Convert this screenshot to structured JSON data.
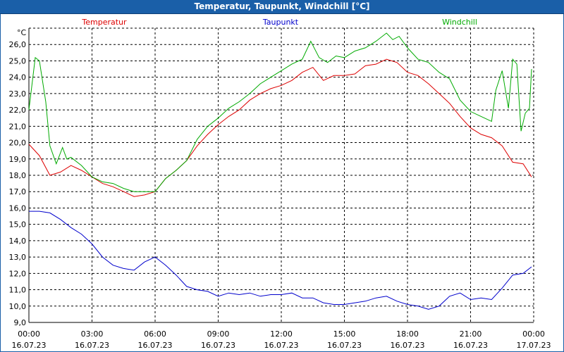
{
  "window": {
    "title": "Temperatur, Taupunkt, Windchill [°C]"
  },
  "chart_data": {
    "type": "line",
    "title": "Temperatur, Taupunkt, Windchill [°C]",
    "unit_label": "°C",
    "ylim": [
      9.0,
      27.0
    ],
    "y_ticks": [
      "9,0",
      "10,0",
      "11,0",
      "12,0",
      "13,0",
      "14,0",
      "15,0",
      "16,0",
      "17,0",
      "18,0",
      "19,0",
      "20,0",
      "21,0",
      "22,0",
      "23,0",
      "24,0",
      "25,0",
      "26,0"
    ],
    "x_ticks": [
      {
        "time": "00:00",
        "date": "16.07.23"
      },
      {
        "time": "03:00",
        "date": "16.07.23"
      },
      {
        "time": "06:00",
        "date": "16.07.23"
      },
      {
        "time": "09:00",
        "date": "16.07.23"
      },
      {
        "time": "12:00",
        "date": "16.07.23"
      },
      {
        "time": "15:00",
        "date": "16.07.23"
      },
      {
        "time": "18:00",
        "date": "16.07.23"
      },
      {
        "time": "21:00",
        "date": "16.07.23"
      },
      {
        "time": "00:00",
        "date": "17.07.23"
      }
    ],
    "x_range_hours": [
      0,
      24
    ],
    "series": [
      {
        "name": "Temperatur",
        "color": "#dd0000",
        "x": [
          0,
          0.5,
          1,
          1.5,
          2,
          2.5,
          3,
          3.5,
          4,
          4.5,
          5,
          5.5,
          6,
          6.5,
          7,
          7.5,
          8,
          8.5,
          9,
          9.5,
          10,
          10.5,
          11,
          11.5,
          12,
          12.5,
          13,
          13.5,
          14,
          14.5,
          15,
          15.5,
          16,
          16.5,
          17,
          17.5,
          18,
          18.5,
          19,
          19.5,
          20,
          20.5,
          21,
          21.5,
          22,
          22.5,
          23,
          23.5,
          23.9
        ],
        "values": [
          19.9,
          19.2,
          18.0,
          18.2,
          18.6,
          18.3,
          17.9,
          17.5,
          17.3,
          17.0,
          16.7,
          16.8,
          17.0,
          17.8,
          18.3,
          18.9,
          19.8,
          20.5,
          21.1,
          21.6,
          22.0,
          22.6,
          23.0,
          23.3,
          23.5,
          23.8,
          24.3,
          24.6,
          23.8,
          24.1,
          24.1,
          24.2,
          24.7,
          24.8,
          25.1,
          24.9,
          24.3,
          24.1,
          23.6,
          23.0,
          22.4,
          21.6,
          20.9,
          20.5,
          20.3,
          19.8,
          18.8,
          18.7,
          17.9
        ]
      },
      {
        "name": "Taupunkt",
        "color": "#0000cc",
        "x": [
          0,
          0.5,
          1,
          1.5,
          2,
          2.5,
          3,
          3.5,
          4,
          4.5,
          5,
          5.5,
          6,
          6.5,
          7,
          7.5,
          8,
          8.5,
          9,
          9.5,
          10,
          10.5,
          11,
          11.5,
          12,
          12.5,
          13,
          13.5,
          14,
          14.5,
          15,
          15.5,
          16,
          16.5,
          17,
          17.5,
          18,
          18.5,
          19,
          19.5,
          20,
          20.5,
          21,
          21.5,
          22,
          22.5,
          23,
          23.5,
          23.9
        ],
        "values": [
          15.8,
          15.8,
          15.7,
          15.3,
          14.8,
          14.4,
          13.8,
          13.0,
          12.5,
          12.3,
          12.2,
          12.7,
          13.0,
          12.5,
          11.9,
          11.2,
          11.0,
          10.9,
          10.6,
          10.8,
          10.7,
          10.8,
          10.6,
          10.7,
          10.7,
          10.8,
          10.5,
          10.5,
          10.2,
          10.1,
          10.1,
          10.2,
          10.3,
          10.5,
          10.6,
          10.3,
          10.1,
          10.0,
          9.8,
          10.0,
          10.6,
          10.8,
          10.4,
          10.5,
          10.4,
          11.1,
          11.9,
          12.0,
          12.4
        ]
      },
      {
        "name": "Windchill",
        "color": "#00aa00",
        "x": [
          0,
          0.3,
          0.5,
          0.8,
          1,
          1.3,
          1.6,
          1.8,
          2,
          2.5,
          3,
          3.5,
          4,
          4.5,
          5,
          5.5,
          6,
          6.5,
          7,
          7.5,
          8,
          8.5,
          9,
          9.5,
          10,
          10.5,
          11,
          11.5,
          12,
          12.5,
          13,
          13.4,
          13.8,
          14.2,
          14.6,
          15,
          15.5,
          16,
          16.5,
          17,
          17.3,
          17.6,
          18,
          18.5,
          19,
          19.5,
          20,
          20.5,
          21,
          21.5,
          22,
          22.2,
          22.5,
          22.8,
          23,
          23.2,
          23.4,
          23.6,
          23.8,
          23.9
        ],
        "values": [
          22.0,
          25.2,
          25.0,
          22.5,
          19.8,
          18.7,
          19.7,
          19.0,
          19.1,
          18.6,
          17.9,
          17.6,
          17.5,
          17.2,
          17.0,
          17.0,
          17.0,
          17.8,
          18.3,
          18.9,
          20.2,
          21.0,
          21.5,
          22.1,
          22.5,
          23.0,
          23.6,
          24.0,
          24.4,
          24.8,
          25.1,
          26.2,
          25.2,
          24.9,
          25.3,
          25.2,
          25.6,
          25.8,
          26.2,
          26.7,
          26.3,
          26.5,
          25.8,
          25.1,
          24.9,
          24.3,
          23.9,
          22.6,
          21.9,
          21.6,
          21.3,
          23.2,
          24.4,
          22.1,
          25.1,
          24.8,
          20.7,
          21.8,
          22.1,
          24.5
        ]
      }
    ]
  }
}
